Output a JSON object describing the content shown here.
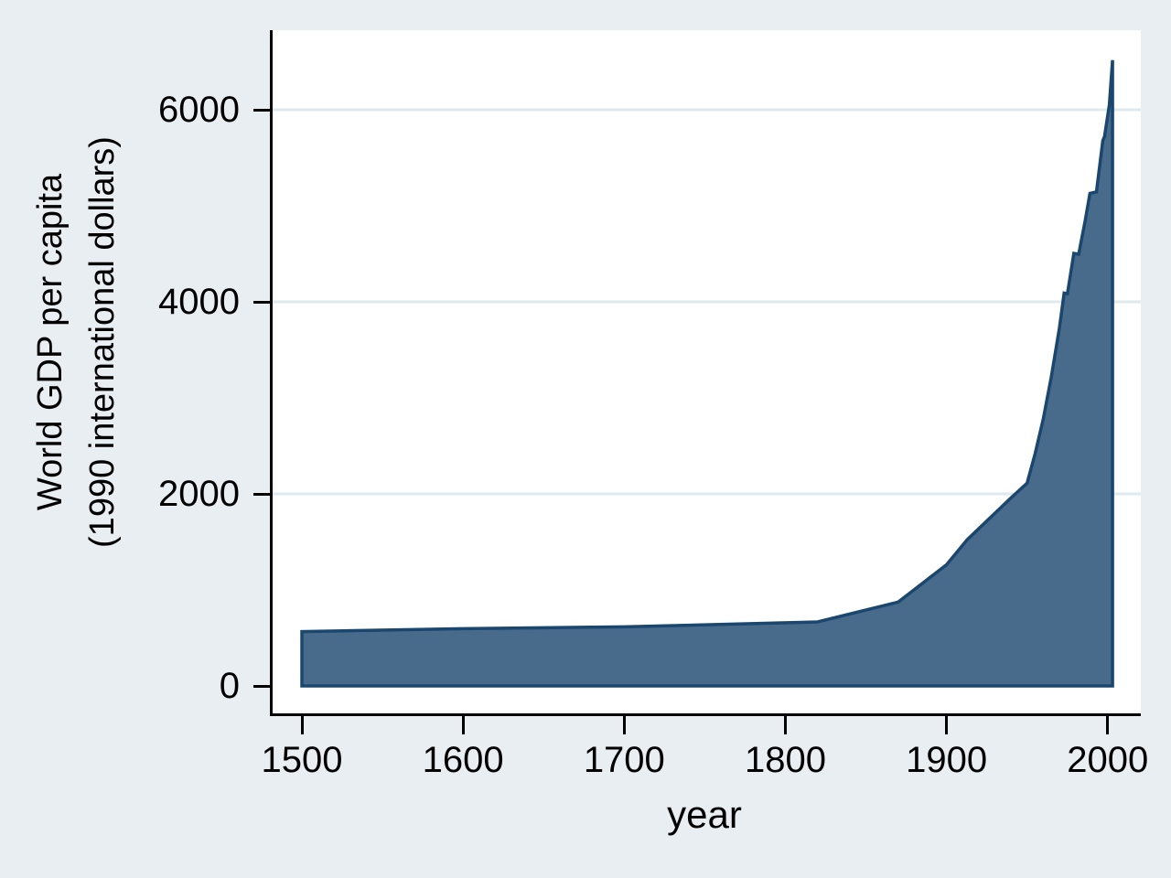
{
  "chart_data": {
    "type": "area",
    "title": "",
    "xlabel": "year",
    "ylabel_lines": [
      "World GDP per capita",
      "(1990 international dollars)"
    ],
    "series_name": "World GDP per capita (1990 international dollars)",
    "x": [
      1500,
      1600,
      1700,
      1820,
      1870,
      1900,
      1913,
      1940,
      1950,
      1955,
      1960,
      1965,
      1970,
      1973,
      1975,
      1979,
      1982,
      1986,
      1989,
      1993,
      1997,
      1998,
      2001,
      2003
    ],
    "values": [
      566,
      596,
      615,
      667,
      873,
      1262,
      1526,
      1958,
      2111,
      2420,
      2777,
      3215,
      3725,
      4091,
      4085,
      4505,
      4495,
      4840,
      5130,
      5145,
      5680,
      5720,
      6050,
      6516
    ],
    "baseline": 0,
    "x_ticks": [
      1500,
      1600,
      1700,
      1800,
      1900,
      2000
    ],
    "y_ticks": [
      0,
      2000,
      4000,
      6000
    ],
    "gridline_values": [
      2000,
      4000,
      6000
    ],
    "xlim": [
      1500,
      2003
    ],
    "ylim": [
      0,
      6516
    ],
    "grid": true,
    "legend": "none",
    "colors": {
      "page_bg": "#e9eef2",
      "plot_bg": "#ffffff",
      "gridline": "#dfeaed",
      "axis": "#000000",
      "text": "#000000",
      "area_fill": "#486b8c",
      "area_outline": "#1b476f"
    }
  }
}
